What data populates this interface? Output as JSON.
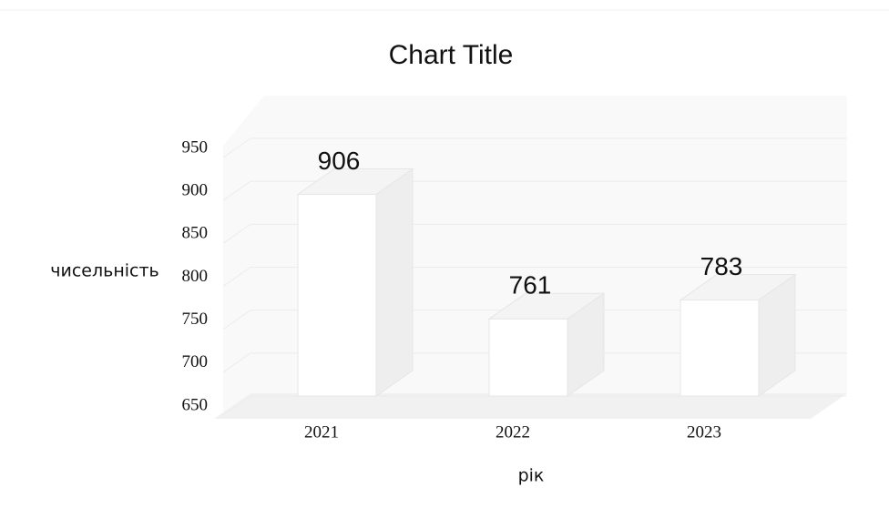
{
  "chart_data": {
    "type": "bar",
    "title": "Chart Title",
    "x_label": "рік",
    "y_label": "чисельність",
    "categories": [
      "2021",
      "2022",
      "2023"
    ],
    "values": [
      906,
      761,
      783
    ],
    "color": "#ffffff",
    "ylim": [
      650,
      950
    ],
    "yticks": [
      650,
      700,
      750,
      800,
      850,
      900,
      950
    ],
    "grid": true,
    "data_labels": true
  }
}
